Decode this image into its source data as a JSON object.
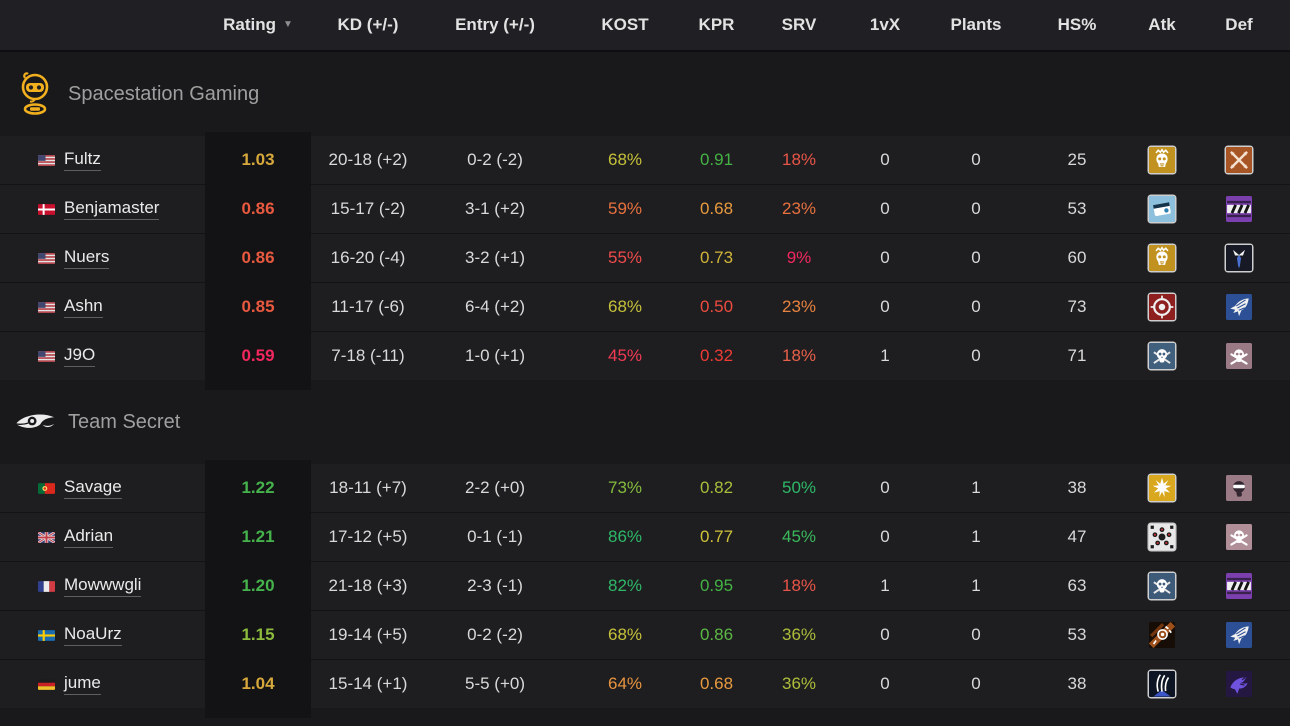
{
  "header": {
    "cols": [
      "Rating",
      "KD (+/-)",
      "Entry (+/-)",
      "KOST",
      "KPR",
      "SRV",
      "1vX",
      "Plants",
      "HS%",
      "Atk",
      "Def"
    ],
    "sort_icon": "▼"
  },
  "colors": {
    "page_bg": "#19191b",
    "header_bg": "#202024",
    "row_bg": "#1e1e20",
    "rating_band_bg": "#131315",
    "team_name_text": "#9f9f9f",
    "ssg_brand": "#f2b01e",
    "secret_brand": "#ececec"
  },
  "teams": [
    {
      "name": "Spacestation Gaming",
      "logo": "ssg-astronaut",
      "players": [
        {
          "name": "Fultz",
          "country": "us",
          "rating": {
            "text": "1.03",
            "color": "#d7a83b"
          },
          "kd": "20-18 (+2)",
          "entry": "0-2 (-2)",
          "kost": {
            "text": "68%",
            "color": "#c6c13a"
          },
          "kpr": {
            "text": "0.91",
            "color": "#44b244"
          },
          "srv": {
            "text": "18%",
            "color": "#e85548"
          },
          "onevx": "0",
          "plants": "0",
          "hs": "25",
          "atk_icon": {
            "shape": "mask",
            "bg": "#c1921f",
            "border": true
          },
          "def_icon": {
            "shape": "blades",
            "bg": "#a85526",
            "border": true
          }
        },
        {
          "name": "Benjamaster",
          "country": "dk",
          "rating": {
            "text": "0.86",
            "color": "#e8593f"
          },
          "kd": "15-17 (-2)",
          "entry": "3-1 (+2)",
          "kost": {
            "text": "59%",
            "color": "#e8713f"
          },
          "kpr": {
            "text": "0.68",
            "color": "#e89a3f"
          },
          "srv": {
            "text": "23%",
            "color": "#e8713f"
          },
          "onevx": "0",
          "plants": "0",
          "hs": "53",
          "atk_icon": {
            "shape": "device",
            "bg": "#8cc0dd",
            "border": true
          },
          "def_icon": {
            "shape": "hazard",
            "bg": "#7b3fae",
            "border": false
          }
        },
        {
          "name": "Nuers",
          "country": "us",
          "rating": {
            "text": "0.86",
            "color": "#e8593f"
          },
          "kd": "16-20 (-4)",
          "entry": "3-2 (+1)",
          "kost": {
            "text": "55%",
            "color": "#ef4b4b"
          },
          "kpr": {
            "text": "0.73",
            "color": "#d0b43a"
          },
          "srv": {
            "text": "9%",
            "color": "#f2275e"
          },
          "onevx": "0",
          "plants": "0",
          "hs": "60",
          "atk_icon": {
            "shape": "mask",
            "bg": "#c1921f",
            "border": true
          },
          "def_icon": {
            "shape": "necktie",
            "bg": "#171a24",
            "border": true
          }
        },
        {
          "name": "Ashn",
          "country": "us",
          "rating": {
            "text": "0.85",
            "color": "#e8593f"
          },
          "kd": "11-17 (-6)",
          "entry": "6-4 (+2)",
          "kost": {
            "text": "68%",
            "color": "#c6c13a"
          },
          "kpr": {
            "text": "0.50",
            "color": "#ee4b3e"
          },
          "srv": {
            "text": "23%",
            "color": "#e8823f"
          },
          "onevx": "0",
          "plants": "0",
          "hs": "73",
          "atk_icon": {
            "shape": "target",
            "bg": "#8e1f1f",
            "border": true
          },
          "def_icon": {
            "shape": "wings",
            "bg": "#2c4f96",
            "border": false
          }
        },
        {
          "name": "J9O",
          "country": "us",
          "rating": {
            "text": "0.59",
            "color": "#f2275e"
          },
          "kd": "7-18 (-11)",
          "entry": "1-0 (+1)",
          "kost": {
            "text": "45%",
            "color": "#f23a55"
          },
          "kpr": {
            "text": "0.32",
            "color": "#ee3b35"
          },
          "srv": {
            "text": "18%",
            "color": "#e8604a"
          },
          "onevx": "1",
          "plants": "0",
          "hs": "71",
          "atk_icon": {
            "shape": "skullcross",
            "bg": "#41607d",
            "border": true
          },
          "def_icon": {
            "shape": "skullbones",
            "bg": "#9a7a84",
            "border": false
          }
        }
      ]
    },
    {
      "name": "Team Secret",
      "logo": "secret-eye",
      "players": [
        {
          "name": "Savage",
          "country": "pt",
          "rating": {
            "text": "1.22",
            "color": "#46b24c"
          },
          "kd": "18-11 (+7)",
          "entry": "2-2 (+0)",
          "kost": {
            "text": "73%",
            "color": "#84bb3d"
          },
          "kpr": {
            "text": "0.82",
            "color": "#a9bd3a"
          },
          "srv": {
            "text": "50%",
            "color": "#2eb868"
          },
          "onevx": "0",
          "plants": "1",
          "hs": "38",
          "atk_icon": {
            "shape": "burst",
            "bg": "#d9a81e",
            "border": true
          },
          "def_icon": {
            "shape": "shadesskull",
            "bg": "#9a7a84",
            "border": false
          }
        },
        {
          "name": "Adrian",
          "country": "gb",
          "rating": {
            "text": "1.21",
            "color": "#46b24c"
          },
          "kd": "17-12 (+5)",
          "entry": "0-1 (-1)",
          "kost": {
            "text": "86%",
            "color": "#2eb868"
          },
          "kpr": {
            "text": "0.77",
            "color": "#d0c23a"
          },
          "srv": {
            "text": "45%",
            "color": "#3bb85c"
          },
          "onevx": "0",
          "plants": "1",
          "hs": "47",
          "atk_icon": {
            "shape": "cluster",
            "bg": "#e8e8e8",
            "border": true
          },
          "def_icon": {
            "shape": "skullbones",
            "bg": "#b08f98",
            "border": false
          }
        },
        {
          "name": "Mowwwgli",
          "country": "fr",
          "rating": {
            "text": "1.20",
            "color": "#46b24c"
          },
          "kd": "21-18 (+3)",
          "entry": "2-3 (-1)",
          "kost": {
            "text": "82%",
            "color": "#2eb868"
          },
          "kpr": {
            "text": "0.95",
            "color": "#44b244"
          },
          "srv": {
            "text": "18%",
            "color": "#e85548"
          },
          "onevx": "1",
          "plants": "1",
          "hs": "63",
          "atk_icon": {
            "shape": "skullcross",
            "bg": "#3d5a78",
            "border": true
          },
          "def_icon": {
            "shape": "hazard",
            "bg": "#7b3fae",
            "border": false
          }
        },
        {
          "name": "NoaUrz",
          "country": "se",
          "rating": {
            "text": "1.15",
            "color": "#8cbb3d"
          },
          "kd": "19-14 (+5)",
          "entry": "0-2 (-2)",
          "kost": {
            "text": "68%",
            "color": "#c6c13a"
          },
          "kpr": {
            "text": "0.86",
            "color": "#5cb844"
          },
          "srv": {
            "text": "36%",
            "color": "#aebd3a"
          },
          "onevx": "0",
          "plants": "0",
          "hs": "53",
          "atk_icon": {
            "shape": "claworb",
            "bg": "#150d06",
            "border": false
          },
          "def_icon": {
            "shape": "wings",
            "bg": "#2c4f96",
            "border": false
          }
        },
        {
          "name": "jume",
          "country": "de",
          "rating": {
            "text": "1.04",
            "color": "#d7a83b"
          },
          "kd": "15-14 (+1)",
          "entry": "5-5 (+0)",
          "kost": {
            "text": "64%",
            "color": "#e8933f"
          },
          "kpr": {
            "text": "0.68",
            "color": "#e89a3f"
          },
          "srv": {
            "text": "36%",
            "color": "#aebd3a"
          },
          "onevx": "0",
          "plants": "0",
          "hs": "38",
          "atk_icon": {
            "shape": "flowlines",
            "bg": "#0d1524",
            "border": true
          },
          "def_icon": {
            "shape": "dragon",
            "bg": "#241741",
            "border": false
          }
        }
      ]
    }
  ]
}
